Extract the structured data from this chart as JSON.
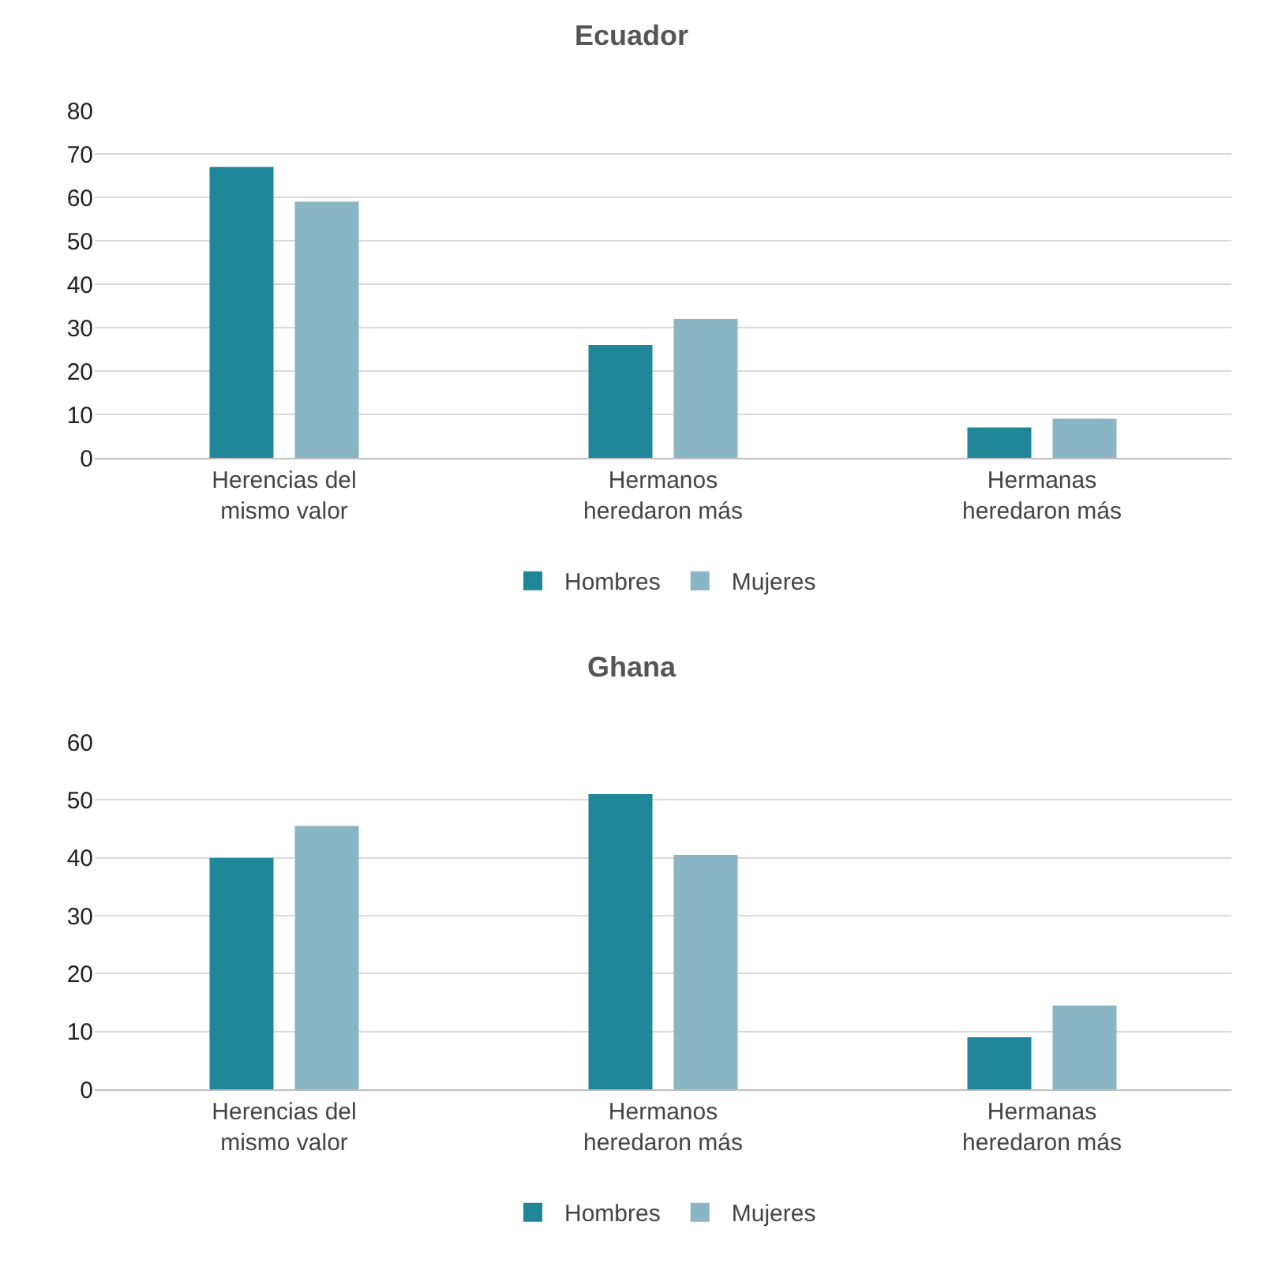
{
  "chart_data": [
    {
      "type": "bar",
      "title": "Ecuador",
      "categories": [
        "Herencias del\nmismo valor",
        "Hermanos\nheredaron más",
        "Hermanas\nheredaron más"
      ],
      "series": [
        {
          "name": "Hombres",
          "color": "#1f8798",
          "values": [
            67,
            26,
            7
          ]
        },
        {
          "name": "Mujeres",
          "color": "#8ab5c4",
          "values": [
            59,
            32,
            9
          ]
        }
      ],
      "ylim": [
        0,
        80
      ],
      "yticks": [
        0,
        10,
        20,
        30,
        40,
        50,
        60,
        70,
        80
      ],
      "grid": "y",
      "legend": "bottom"
    },
    {
      "type": "bar",
      "title": "Ghana",
      "categories": [
        "Herencias del\nmismo valor",
        "Hermanos\nheredaron más",
        "Hermanas\nheredaron más"
      ],
      "series": [
        {
          "name": "Hombres",
          "color": "#1f8798",
          "values": [
            40,
            51,
            9
          ]
        },
        {
          "name": "Mujeres",
          "color": "#8ab5c4",
          "values": [
            45.5,
            40.5,
            14.5
          ]
        }
      ],
      "ylim": [
        0,
        60
      ],
      "yticks": [
        0,
        10,
        20,
        30,
        40,
        50,
        60
      ],
      "grid": "y",
      "legend": "bottom"
    }
  ]
}
